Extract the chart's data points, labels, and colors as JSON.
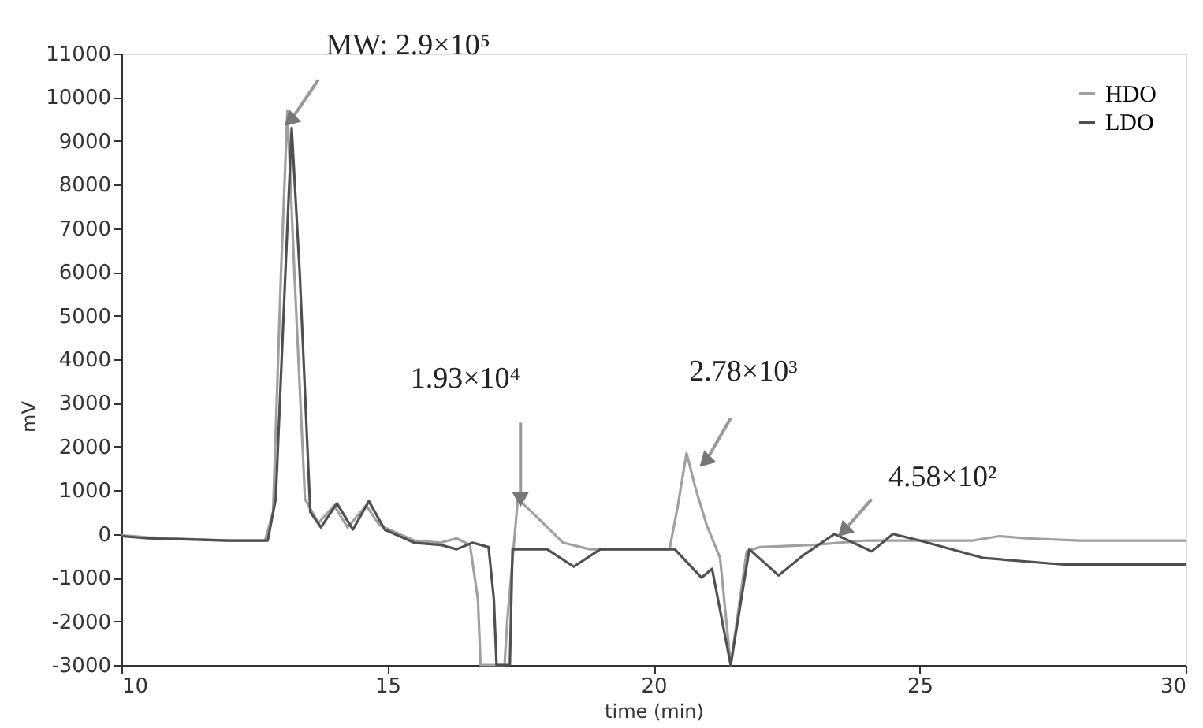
{
  "chart_data": {
    "type": "line",
    "xlabel": "time (min)",
    "ylabel": "mV",
    "xlim": [
      10,
      30
    ],
    "xticks": [
      10,
      15,
      20,
      25,
      30
    ],
    "ylim": [
      -3000,
      11000
    ],
    "yticks": [
      -3000,
      -2000,
      -1000,
      0,
      1000,
      2000,
      3000,
      4000,
      5000,
      6000,
      7000,
      8000,
      9000,
      10000,
      11000
    ],
    "grid": false,
    "legend": "top right",
    "marker": "none",
    "line_style": "solid",
    "series": [
      {
        "name": "HDO",
        "color": "#a0a0a0",
        "x": [
          10,
          10.5,
          12,
          12.7,
          12.85,
          13.0,
          13.12,
          13.25,
          13.45,
          13.7,
          14.0,
          14.25,
          14.6,
          14.85,
          15.5,
          16.0,
          16.3,
          16.55,
          16.7,
          16.75,
          17.2,
          17.25,
          17.45,
          17.8,
          18.3,
          18.8,
          20.3,
          20.45,
          20.62,
          20.8,
          21.0,
          21.25,
          21.45,
          21.75,
          22.0,
          23.0,
          24.0,
          26.0,
          26.5,
          27.0,
          28.0,
          30
        ],
        "values": [
          -30,
          -80,
          -150,
          -150,
          500,
          6000,
          9700,
          6000,
          800,
          250,
          650,
          150,
          650,
          200,
          -150,
          -200,
          -100,
          -250,
          -1500,
          -3000,
          -3000,
          -2000,
          800,
          400,
          -200,
          -350,
          -350,
          600,
          1850,
          1000,
          200,
          -550,
          -3000,
          -400,
          -300,
          -250,
          -150,
          -150,
          -50,
          -100,
          -150,
          -150
        ]
      },
      {
        "name": "LDO",
        "color": "#505050",
        "x": [
          10,
          10.5,
          12,
          12.75,
          12.9,
          13.1,
          13.2,
          13.35,
          13.55,
          13.75,
          14.05,
          14.35,
          14.65,
          14.95,
          15.5,
          16.0,
          16.3,
          16.6,
          16.9,
          17.0,
          17.05,
          17.3,
          17.35,
          18.0,
          18.5,
          19.0,
          20.4,
          20.9,
          21.1,
          21.45,
          21.8,
          22.35,
          22.8,
          23.4,
          24.1,
          24.5,
          25.0,
          26.2,
          27.7,
          30
        ],
        "values": [
          -50,
          -100,
          -150,
          -150,
          800,
          6500,
          9300,
          6000,
          500,
          150,
          700,
          100,
          750,
          100,
          -200,
          -250,
          -350,
          -200,
          -300,
          -1500,
          -3000,
          -3000,
          -350,
          -350,
          -750,
          -350,
          -350,
          -1000,
          -800,
          -3000,
          -350,
          -950,
          -500,
          0,
          -400,
          0,
          -150,
          -550,
          -700,
          -700
        ]
      }
    ],
    "annotations": [
      {
        "text": "MW: 2.9×10⁵",
        "x": 13.2,
        "y": 9500
      },
      {
        "text": "1.93×10⁴",
        "x": 17.5,
        "y": 850
      },
      {
        "text": "2.78×10³",
        "x": 21.0,
        "y": 1700
      },
      {
        "text": "4.58×10²",
        "x": 23.6,
        "y": 100
      }
    ]
  }
}
